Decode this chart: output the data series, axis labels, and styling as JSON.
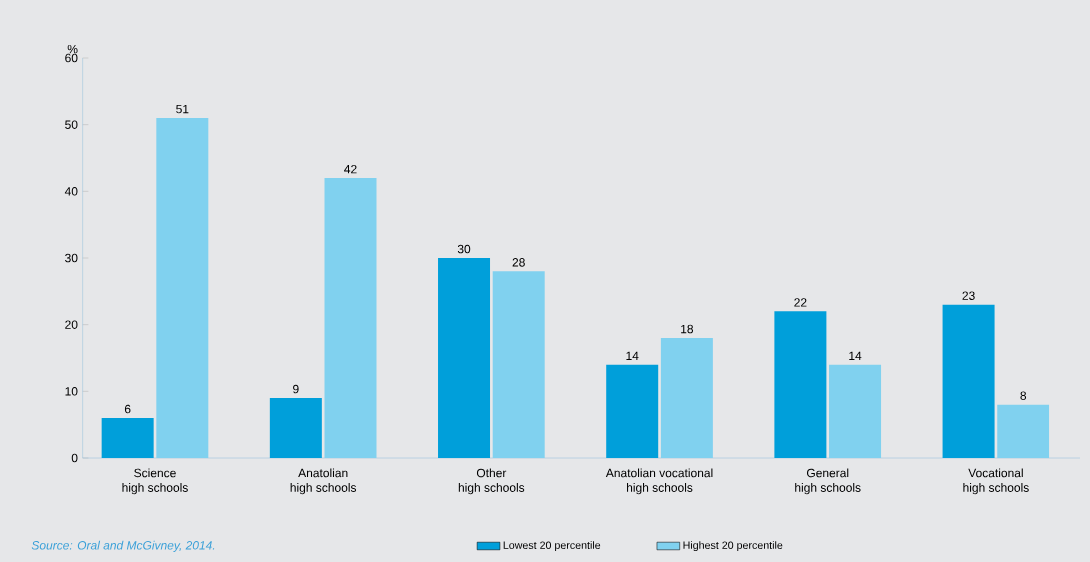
{
  "chart_data": {
    "type": "bar",
    "ylabel": "%",
    "categories": [
      "Science\nhigh schools",
      "Anatolian\nhigh schools",
      "Other\nhigh schools",
      "Anatolian vocational\nhigh schools",
      "General\nhigh schools",
      "Vocational\nhigh schools"
    ],
    "series": [
      {
        "name": "Lowest 20 percentile",
        "color": "#009fda",
        "values": [
          6,
          9,
          30,
          14,
          22,
          23
        ]
      },
      {
        "name": "Highest 20 percentile",
        "color": "#80d1ef",
        "values": [
          51,
          42,
          28,
          18,
          14,
          8
        ]
      }
    ],
    "ylim": [
      0,
      60
    ],
    "yticks": [
      0,
      10,
      20,
      30,
      40,
      50,
      60
    ],
    "data_labels": true,
    "grid": false,
    "legend": "bottom",
    "annotations": [
      "Source: Oral and McGivney, 2014."
    ]
  }
}
